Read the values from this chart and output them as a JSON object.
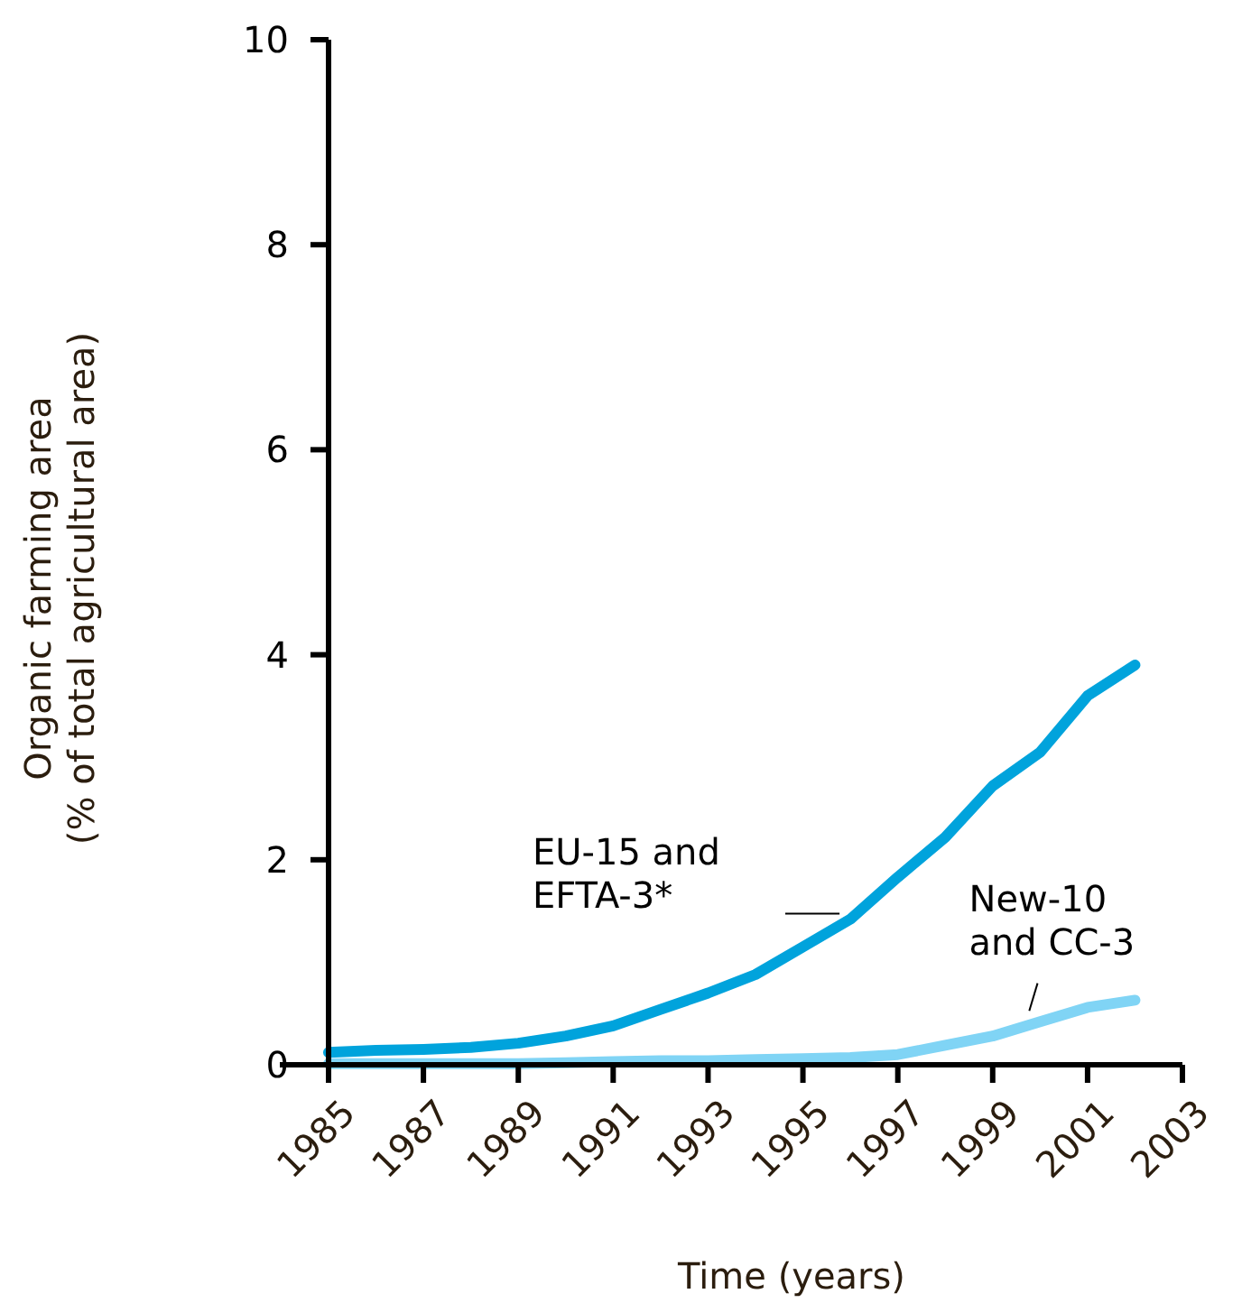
{
  "chart_data": {
    "type": "line",
    "xlabel": "Time (years)",
    "ylabel": "Organic farming area\n(% of total agricultural area)",
    "x": [
      1985,
      1986,
      1987,
      1988,
      1989,
      1990,
      1991,
      1992,
      1993,
      1994,
      1995,
      1996,
      1997,
      1998,
      1999,
      2000,
      2001,
      2002
    ],
    "series": [
      {
        "name": "EU-15 and\nEFTA-3*",
        "color": "#00a3dc",
        "values": [
          0.12,
          0.14,
          0.15,
          0.17,
          0.21,
          0.28,
          0.38,
          0.54,
          0.7,
          0.88,
          1.15,
          1.42,
          1.83,
          2.22,
          2.72,
          3.05,
          3.6,
          3.9
        ]
      },
      {
        "name": "New-10\nand CC-3",
        "color": "#80d4f5",
        "values": [
          0.01,
          0.01,
          0.01,
          0.01,
          0.01,
          0.02,
          0.03,
          0.04,
          0.04,
          0.05,
          0.06,
          0.07,
          0.1,
          0.19,
          0.28,
          0.42,
          0.56,
          0.63
        ]
      }
    ],
    "xlim": [
      1985,
      2003
    ],
    "xticks": [
      1985,
      1987,
      1989,
      1991,
      1993,
      1995,
      1997,
      1999,
      2001,
      2003
    ],
    "ylim": [
      0,
      10
    ],
    "yticks": [
      0,
      2,
      4,
      6,
      8,
      10
    ],
    "grid": false,
    "legend": false,
    "marker": "none",
    "line_style": "solid"
  }
}
